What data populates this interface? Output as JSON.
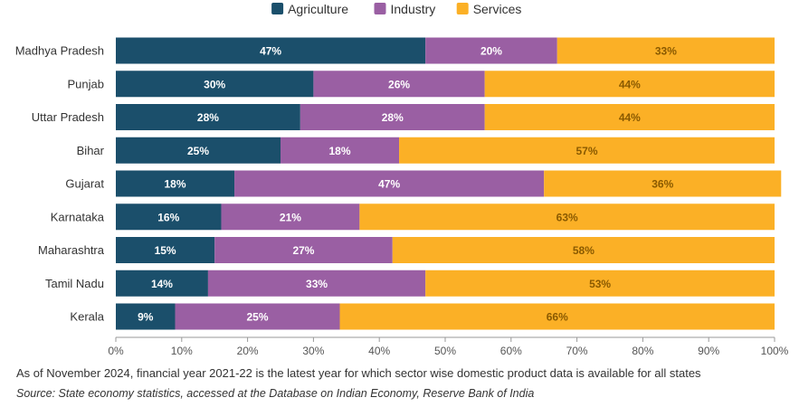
{
  "chart_data": {
    "type": "bar",
    "orientation": "horizontal",
    "stacked": true,
    "categories": [
      "Madhya Pradesh",
      "Punjab",
      "Uttar Pradesh",
      "Bihar",
      "Gujarat",
      "Karnataka",
      "Maharashtra",
      "Tamil Nadu",
      "Kerala"
    ],
    "series": [
      {
        "name": "Agriculture",
        "color": "#1b4f6b",
        "values": [
          47,
          30,
          28,
          25,
          18,
          16,
          15,
          14,
          9
        ]
      },
      {
        "name": "Industry",
        "color": "#9a5fa3",
        "values": [
          20,
          26,
          28,
          18,
          47,
          21,
          27,
          33,
          25
        ]
      },
      {
        "name": "Services",
        "color": "#fbb026",
        "values": [
          33,
          44,
          44,
          57,
          36,
          63,
          58,
          53,
          66
        ]
      }
    ],
    "xlim": [
      0,
      100
    ],
    "xticks": [
      "0%",
      "10%",
      "20%",
      "30%",
      "40%",
      "50%",
      "60%",
      "70%",
      "80%",
      "90%",
      "100%"
    ],
    "label_suffix": "%",
    "legend_position": "top-center",
    "grid": false
  },
  "note": "As of November 2024, financial year 2021-22 is the latest year for which sector wise domestic product data is available for all states",
  "source": "Source: State economy statistics, accessed at the Database on Indian Economy, Reserve Bank of India"
}
